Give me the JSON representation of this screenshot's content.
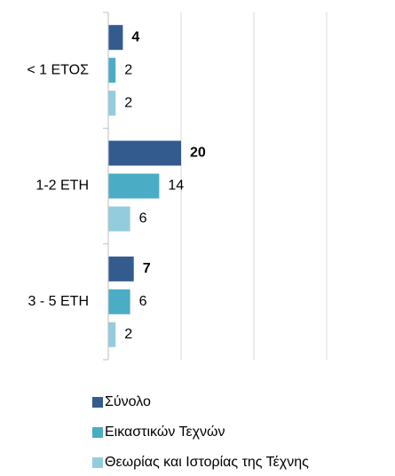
{
  "chart_data": {
    "type": "hbar",
    "categories": [
      "< 1 ΕΤΟΣ",
      "1-2 ΕΤΗ",
      "3 - 5 ΕΤΗ"
    ],
    "series": [
      {
        "name": "Σύνολο",
        "color": "#335b8e",
        "values": [
          4,
          20,
          7
        ]
      },
      {
        "name": "Εικαστικών Τεχνών",
        "color": "#4bacc6",
        "values": [
          2,
          14,
          6
        ]
      },
      {
        "name": "Θεωρίας και Ιστορίας της Τέχνης",
        "color": "#93cddd",
        "values": [
          2,
          6,
          2
        ]
      }
    ],
    "xlim": [
      0,
      80
    ],
    "xticks": [
      0,
      20,
      40,
      60,
      80
    ],
    "grid": true,
    "legend": "bottom"
  }
}
